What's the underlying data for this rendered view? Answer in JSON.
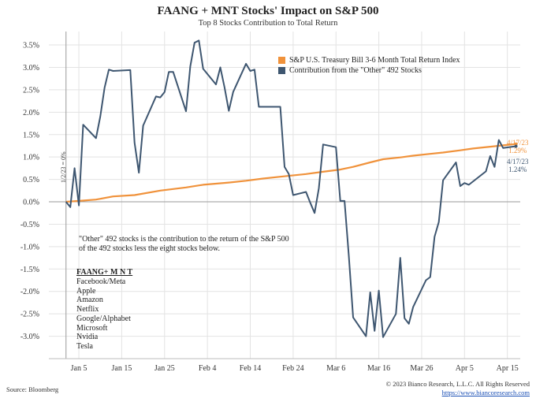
{
  "title": "FAANG + MNT Stocks' Impact on S&P 500",
  "subtitle": "Top 8 Stocks Contribution to Total Return",
  "source": "Source: Bloomberg",
  "copyright": "© 2023 Bianco Research, L.L.C. All Rights Reserved",
  "website": "https://www.biancoresearch.com",
  "note": "\"Other\" 492 stocks is the contribution to the return of the S&P 500 of the 492 stocks less the eight stocks below.",
  "stock_list_title": "FAANG+ M N T",
  "stock_list": [
    "Facebook/Meta",
    "Apple",
    "Amazon",
    "Netflix",
    "Google/Alphabet",
    "Microsoft",
    "Nvidia",
    "Tesla"
  ],
  "start_label": "1/2/23 = 0%",
  "end_labels": {
    "tbill": {
      "date": "4/17/23",
      "value": "1.29%"
    },
    "other": {
      "date": "4/17/23",
      "value": "1.24%"
    }
  },
  "chart_data": {
    "type": "line",
    "title": "FAANG + MNT Stocks' Impact on S&P 500",
    "subtitle": "Top 8 Stocks Contribution to Total Return",
    "x_tick_labels": [
      "Jan 5",
      "Jan 15",
      "Jan 25",
      "Feb 4",
      "Feb 14",
      "Feb 24",
      "Mar 6",
      "Mar 16",
      "Mar 26",
      "Apr 5",
      "Apr 15"
    ],
    "x_tick_dates": [
      "2023-01-05",
      "2023-01-15",
      "2023-01-25",
      "2023-02-04",
      "2023-02-14",
      "2023-02-24",
      "2023-03-06",
      "2023-03-16",
      "2023-03-26",
      "2023-04-05",
      "2023-04-15"
    ],
    "xlim": [
      "2023-12-29",
      "2023-04-18"
    ],
    "ylim": [
      -3.5,
      3.8
    ],
    "y_ticks": [
      -3.0,
      -2.5,
      -2.0,
      -1.5,
      -1.0,
      -0.5,
      0.0,
      0.5,
      1.0,
      1.5,
      2.0,
      2.5,
      3.0,
      3.5
    ],
    "y_tick_labels": [
      "-3.0%",
      "-2.5%",
      "-2.0%",
      "-1.5%",
      "-1.0%",
      "-0.5%",
      "0.0%",
      "0.5%",
      "1.0%",
      "1.5%",
      "2.0%",
      "2.5%",
      "3.0%",
      "3.5%"
    ],
    "grid": true,
    "legend_position": "top-right",
    "series": [
      {
        "name": "S&P U.S. Treasury Bill 3-6 Month Total Return Index",
        "color": "#f0923b",
        "points": [
          [
            "2023-01-02",
            0.0
          ],
          [
            "2023-01-05",
            0.02
          ],
          [
            "2023-01-09",
            0.05
          ],
          [
            "2023-01-13",
            0.12
          ],
          [
            "2023-01-18",
            0.15
          ],
          [
            "2023-01-24",
            0.25
          ],
          [
            "2023-01-30",
            0.32
          ],
          [
            "2023-02-03",
            0.38
          ],
          [
            "2023-02-09",
            0.43
          ],
          [
            "2023-02-13",
            0.47
          ],
          [
            "2023-02-17",
            0.52
          ],
          [
            "2023-02-21",
            0.56
          ],
          [
            "2023-02-27",
            0.62
          ],
          [
            "2023-03-03",
            0.67
          ],
          [
            "2023-03-07",
            0.72
          ],
          [
            "2023-03-10",
            0.78
          ],
          [
            "2023-03-14",
            0.88
          ],
          [
            "2023-03-17",
            0.95
          ],
          [
            "2023-03-21",
            0.99
          ],
          [
            "2023-03-24",
            1.03
          ],
          [
            "2023-03-28",
            1.07
          ],
          [
            "2023-03-31",
            1.1
          ],
          [
            "2023-04-04",
            1.15
          ],
          [
            "2023-04-07",
            1.19
          ],
          [
            "2023-04-11",
            1.23
          ],
          [
            "2023-04-14",
            1.26
          ],
          [
            "2023-04-17",
            1.29
          ]
        ]
      },
      {
        "name": "Contribution from the \"Other\" 492 Stocks",
        "color": "#3e5670",
        "points": [
          [
            "2023-01-02",
            0.0
          ],
          [
            "2023-01-03",
            -0.12
          ],
          [
            "2023-01-04",
            0.75
          ],
          [
            "2023-01-05",
            -0.08
          ],
          [
            "2023-01-06",
            1.72
          ],
          [
            "2023-01-09",
            1.42
          ],
          [
            "2023-01-10",
            1.9
          ],
          [
            "2023-01-11",
            2.55
          ],
          [
            "2023-01-12",
            2.95
          ],
          [
            "2023-01-13",
            2.92
          ],
          [
            "2023-01-17",
            2.94
          ],
          [
            "2023-01-18",
            1.32
          ],
          [
            "2023-01-19",
            0.65
          ],
          [
            "2023-01-20",
            1.7
          ],
          [
            "2023-01-23",
            2.35
          ],
          [
            "2023-01-24",
            2.33
          ],
          [
            "2023-01-25",
            2.45
          ],
          [
            "2023-01-26",
            2.9
          ],
          [
            "2023-01-27",
            2.9
          ],
          [
            "2023-01-30",
            2.02
          ],
          [
            "2023-01-31",
            3.02
          ],
          [
            "2023-02-01",
            3.55
          ],
          [
            "2023-02-02",
            3.6
          ],
          [
            "2023-02-03",
            2.97
          ],
          [
            "2023-02-06",
            2.62
          ],
          [
            "2023-02-07",
            3.0
          ],
          [
            "2023-02-08",
            2.55
          ],
          [
            "2023-02-09",
            2.03
          ],
          [
            "2023-02-10",
            2.45
          ],
          [
            "2023-02-13",
            3.08
          ],
          [
            "2023-02-14",
            2.92
          ],
          [
            "2023-02-15",
            2.95
          ],
          [
            "2023-02-16",
            2.12
          ],
          [
            "2023-02-17",
            2.12
          ],
          [
            "2023-02-21",
            2.12
          ],
          [
            "2023-02-22",
            0.78
          ],
          [
            "2023-02-23",
            0.62
          ],
          [
            "2023-02-24",
            0.15
          ],
          [
            "2023-02-27",
            0.22
          ],
          [
            "2023-02-28",
            -0.02
          ],
          [
            "2023-03-01",
            -0.25
          ],
          [
            "2023-03-02",
            0.3
          ],
          [
            "2023-03-03",
            1.28
          ],
          [
            "2023-03-06",
            1.22
          ],
          [
            "2023-03-07",
            0.02
          ],
          [
            "2023-03-08",
            0.02
          ],
          [
            "2023-03-09",
            -1.2
          ],
          [
            "2023-03-10",
            -2.58
          ],
          [
            "2023-03-13",
            -3.0
          ],
          [
            "2023-03-14",
            -2.02
          ],
          [
            "2023-03-15",
            -2.88
          ],
          [
            "2023-03-16",
            -1.98
          ],
          [
            "2023-03-17",
            -3.02
          ],
          [
            "2023-03-20",
            -2.5
          ],
          [
            "2023-03-21",
            -1.25
          ],
          [
            "2023-03-22",
            -2.6
          ],
          [
            "2023-03-23",
            -2.72
          ],
          [
            "2023-03-24",
            -2.35
          ],
          [
            "2023-03-27",
            -1.75
          ],
          [
            "2023-03-28",
            -1.68
          ],
          [
            "2023-03-29",
            -0.78
          ],
          [
            "2023-03-30",
            -0.45
          ],
          [
            "2023-03-31",
            0.48
          ],
          [
            "2023-04-03",
            0.88
          ],
          [
            "2023-04-04",
            0.35
          ],
          [
            "2023-04-05",
            0.42
          ],
          [
            "2023-04-06",
            0.38
          ],
          [
            "2023-04-10",
            0.68
          ],
          [
            "2023-04-11",
            1.02
          ],
          [
            "2023-04-12",
            0.78
          ],
          [
            "2023-04-13",
            1.38
          ],
          [
            "2023-04-14",
            1.2
          ],
          [
            "2023-04-17",
            1.24
          ]
        ]
      }
    ]
  }
}
